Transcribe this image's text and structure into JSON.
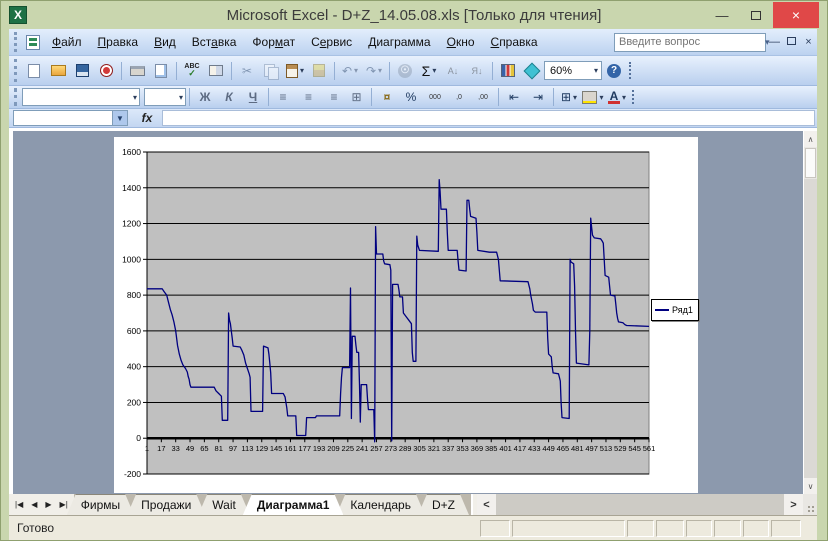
{
  "window": {
    "title": "Microsoft Excel - D+Z_14.05.08.xls  [Только для чтения]"
  },
  "icons": {
    "app_letter": "X",
    "minimize": "—",
    "close": "×",
    "question_dropdown": "▾",
    "cut": "✂",
    "undo": "↶",
    "redo": "↷",
    "autosum": "Σ",
    "sort_asc": "А↓",
    "sort_desc": "Я↓",
    "abc": "ABC",
    "abc_check": "✓",
    "help": "?",
    "dropdown": "▾",
    "name_dropdown": "▼",
    "fx": "fx",
    "align_left": "≡",
    "align_center": "≡",
    "align_right": "≡",
    "merge_center": "⊞",
    "currency": "¤",
    "percent": "%",
    "thousands": "000",
    "increase_decimal": ",0",
    "decrease_decimal": ",00",
    "decrease_indent": "⇤",
    "increase_indent": "⇥",
    "borders": "⊞",
    "font_color_letter": "А",
    "nav_first": "|◀",
    "nav_prev": "◀",
    "nav_next": "▶",
    "nav_last": "▶|",
    "scroll_left": "<",
    "scroll_right": ">",
    "scroll_up": "∧",
    "scroll_down": "∨"
  },
  "menu": {
    "items": [
      {
        "label": "Файл",
        "underline": 0
      },
      {
        "label": "Правка",
        "underline": 0
      },
      {
        "label": "Вид",
        "underline": 0
      },
      {
        "label": "Вставка",
        "underline": 3
      },
      {
        "label": "Формат",
        "underline": 3
      },
      {
        "label": "Сервис",
        "underline": 1
      },
      {
        "label": "Диаграмма",
        "underline": 0
      },
      {
        "label": "Окно",
        "underline": 0
      },
      {
        "label": "Справка",
        "underline": 0
      }
    ],
    "question_placeholder": "Введите вопрос"
  },
  "standard_toolbar": {
    "zoom_value": "60%"
  },
  "formatting_toolbar": {
    "bold": "Ж",
    "italic": "К",
    "underline": "Ч",
    "font_name": "",
    "font_size": ""
  },
  "formula_bar": {
    "name_box": "",
    "formula": ""
  },
  "chart_data": {
    "type": "line",
    "title": "",
    "legend": {
      "position": "right",
      "entries": [
        {
          "name": "Ряд1",
          "color": "#000080"
        }
      ]
    },
    "plot": {
      "bg": "#c0c0c0",
      "gridline_color": "#000000",
      "border_color": "#808080"
    },
    "x_axis": {
      "min": 1,
      "max": 561,
      "tick_interval": 16,
      "tick_labels": [
        1,
        17,
        33,
        49,
        65,
        81,
        97,
        113,
        129,
        145,
        161,
        177,
        193,
        209,
        225,
        241,
        257,
        273,
        289,
        305,
        321,
        337,
        353,
        369,
        385,
        401,
        417,
        433,
        449,
        465,
        481,
        497,
        513,
        529,
        545,
        561
      ]
    },
    "y_axis": {
      "min": -200,
      "max": 1600,
      "step": 200,
      "tick_labels": [
        -200,
        0,
        200,
        400,
        600,
        800,
        1000,
        1200,
        1400,
        1600
      ]
    },
    "series": [
      {
        "name": "Ряд1",
        "color": "#000080",
        "points": [
          [
            1,
            835
          ],
          [
            18,
            835
          ],
          [
            20,
            820
          ],
          [
            23,
            800
          ],
          [
            25,
            760
          ],
          [
            27,
            720
          ],
          [
            29,
            690
          ],
          [
            31,
            650
          ],
          [
            33,
            600
          ],
          [
            34,
            560
          ],
          [
            35,
            520
          ],
          [
            37,
            470
          ],
          [
            39,
            435
          ],
          [
            41,
            410
          ],
          [
            44,
            390
          ],
          [
            46,
            370
          ],
          [
            47,
            345
          ],
          [
            48,
            330
          ],
          [
            49,
            300
          ],
          [
            50,
            285
          ],
          [
            76,
            285
          ],
          [
            78,
            265
          ],
          [
            81,
            250
          ],
          [
            83,
            240
          ],
          [
            84,
            235
          ],
          [
            85,
            100
          ],
          [
            91,
            100
          ],
          [
            92,
            700
          ],
          [
            93,
            660
          ],
          [
            94,
            640
          ],
          [
            95,
            600
          ],
          [
            96,
            560
          ],
          [
            97,
            515
          ],
          [
            105,
            510
          ],
          [
            107,
            490
          ],
          [
            109,
            465
          ],
          [
            111,
            420
          ],
          [
            113,
            390
          ],
          [
            115,
            360
          ],
          [
            116,
            340
          ],
          [
            117,
            150
          ],
          [
            130,
            150
          ],
          [
            131,
            515
          ],
          [
            136,
            505
          ],
          [
            137,
            470
          ],
          [
            138,
            420
          ],
          [
            139,
            365
          ],
          [
            140,
            250
          ],
          [
            153,
            250
          ],
          [
            155,
            230
          ],
          [
            156,
            200
          ],
          [
            157,
            170
          ],
          [
            158,
            125
          ],
          [
            167,
            125
          ],
          [
            168,
            15
          ],
          [
            178,
            15
          ],
          [
            179,
            115
          ],
          [
            189,
            115
          ],
          [
            190,
            125
          ],
          [
            216,
            125
          ],
          [
            217,
            250
          ],
          [
            218,
            340
          ],
          [
            219,
            395
          ],
          [
            227,
            395
          ],
          [
            228,
            840
          ],
          [
            229,
            110
          ],
          [
            230,
            570
          ],
          [
            233,
            570
          ],
          [
            234,
            520
          ],
          [
            235,
            480
          ],
          [
            237,
            480
          ],
          [
            238,
            300
          ],
          [
            239,
            90
          ],
          [
            240,
            300
          ],
          [
            246,
            300
          ],
          [
            247,
            220
          ],
          [
            248,
            160
          ],
          [
            254,
            160
          ],
          [
            255,
            -20
          ],
          [
            256,
            1183
          ],
          [
            257,
            1030
          ],
          [
            264,
            1030
          ],
          [
            265,
            990
          ],
          [
            266,
            975
          ],
          [
            272,
            970
          ],
          [
            273,
            940
          ],
          [
            274,
            -15
          ],
          [
            275,
            860
          ],
          [
            281,
            860
          ],
          [
            282,
            830
          ],
          [
            283,
            790
          ],
          [
            286,
            790
          ],
          [
            287,
            700
          ],
          [
            290,
            680
          ],
          [
            293,
            660
          ],
          [
            296,
            640
          ],
          [
            297,
            480
          ],
          [
            298,
            430
          ],
          [
            301,
            430
          ],
          [
            302,
            1130
          ],
          [
            303,
            1080
          ],
          [
            305,
            1050
          ],
          [
            326,
            1045
          ],
          [
            327,
            1445
          ],
          [
            328,
            1380
          ],
          [
            329,
            1280
          ],
          [
            335,
            1280
          ],
          [
            336,
            1150
          ],
          [
            337,
            1050
          ],
          [
            347,
            1050
          ],
          [
            348,
            990
          ],
          [
            349,
            940
          ],
          [
            357,
            935
          ],
          [
            358,
            1330
          ],
          [
            360,
            1330
          ],
          [
            361,
            1280
          ],
          [
            362,
            1240
          ],
          [
            368,
            1230
          ],
          [
            369,
            1150
          ],
          [
            370,
            1050
          ],
          [
            383,
            1040
          ],
          [
            391,
            1040
          ],
          [
            393,
            1000
          ],
          [
            394,
            940
          ],
          [
            395,
            880
          ],
          [
            426,
            875
          ],
          [
            428,
            835
          ],
          [
            429,
            800
          ],
          [
            431,
            750
          ],
          [
            432,
            715
          ],
          [
            434,
            705
          ],
          [
            447,
            705
          ],
          [
            448,
            560
          ],
          [
            449,
            470
          ],
          [
            452,
            455
          ],
          [
            453,
            400
          ],
          [
            454,
            365
          ],
          [
            460,
            360
          ],
          [
            461,
            340
          ],
          [
            462,
            320
          ],
          [
            463,
            200
          ],
          [
            464,
            115
          ],
          [
            472,
            110
          ],
          [
            473,
            1000
          ],
          [
            474,
            985
          ],
          [
            477,
            975
          ],
          [
            478,
            850
          ],
          [
            479,
            600
          ],
          [
            480,
            420
          ],
          [
            494,
            410
          ],
          [
            495,
            600
          ],
          [
            496,
            1230
          ],
          [
            497,
            1180
          ],
          [
            498,
            1135
          ],
          [
            500,
            1120
          ],
          [
            507,
            1115
          ],
          [
            509,
            1100
          ],
          [
            510,
            1090
          ],
          [
            511,
            1000
          ],
          [
            512,
            910
          ],
          [
            516,
            900
          ],
          [
            517,
            850
          ],
          [
            518,
            800
          ],
          [
            523,
            795
          ],
          [
            524,
            750
          ],
          [
            525,
            700
          ],
          [
            526,
            670
          ],
          [
            527,
            650
          ],
          [
            532,
            645
          ],
          [
            534,
            635
          ],
          [
            536,
            630
          ],
          [
            561,
            625
          ]
        ]
      }
    ]
  },
  "sheet_tabs": {
    "tabs": [
      "Фирмы",
      "Продажи",
      "Wait",
      "Диаграмма1",
      "Календарь",
      "D+Z"
    ],
    "active": "Диаграмма1"
  },
  "status_bar": {
    "ready": "Готово",
    "panels": [
      "",
      "",
      "",
      "",
      "",
      "",
      "",
      ""
    ]
  }
}
